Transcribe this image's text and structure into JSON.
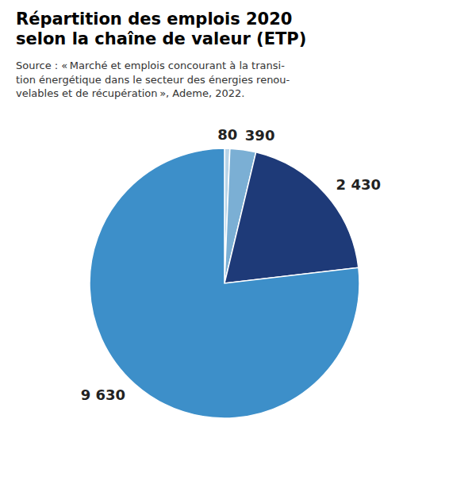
{
  "chart_data": {
    "type": "pie",
    "title": "Répartition des emplois 2020\nselon la chaîne de valeur (ETP)",
    "subtitle": "Source : « Marché et emplois concourant à la transi-\ntion énergétique dans le secteur des énergies renou-\nvelables et de récupération », Ademe, 2022.",
    "values": [
      80,
      390,
      2430,
      9630
    ],
    "value_labels": [
      "80",
      "390",
      "2 430",
      "9 630"
    ],
    "colors": [
      "#b8d4e8",
      "#7bafd4",
      "#1e3a78",
      "#3d8fc9"
    ],
    "data_labels": true
  }
}
